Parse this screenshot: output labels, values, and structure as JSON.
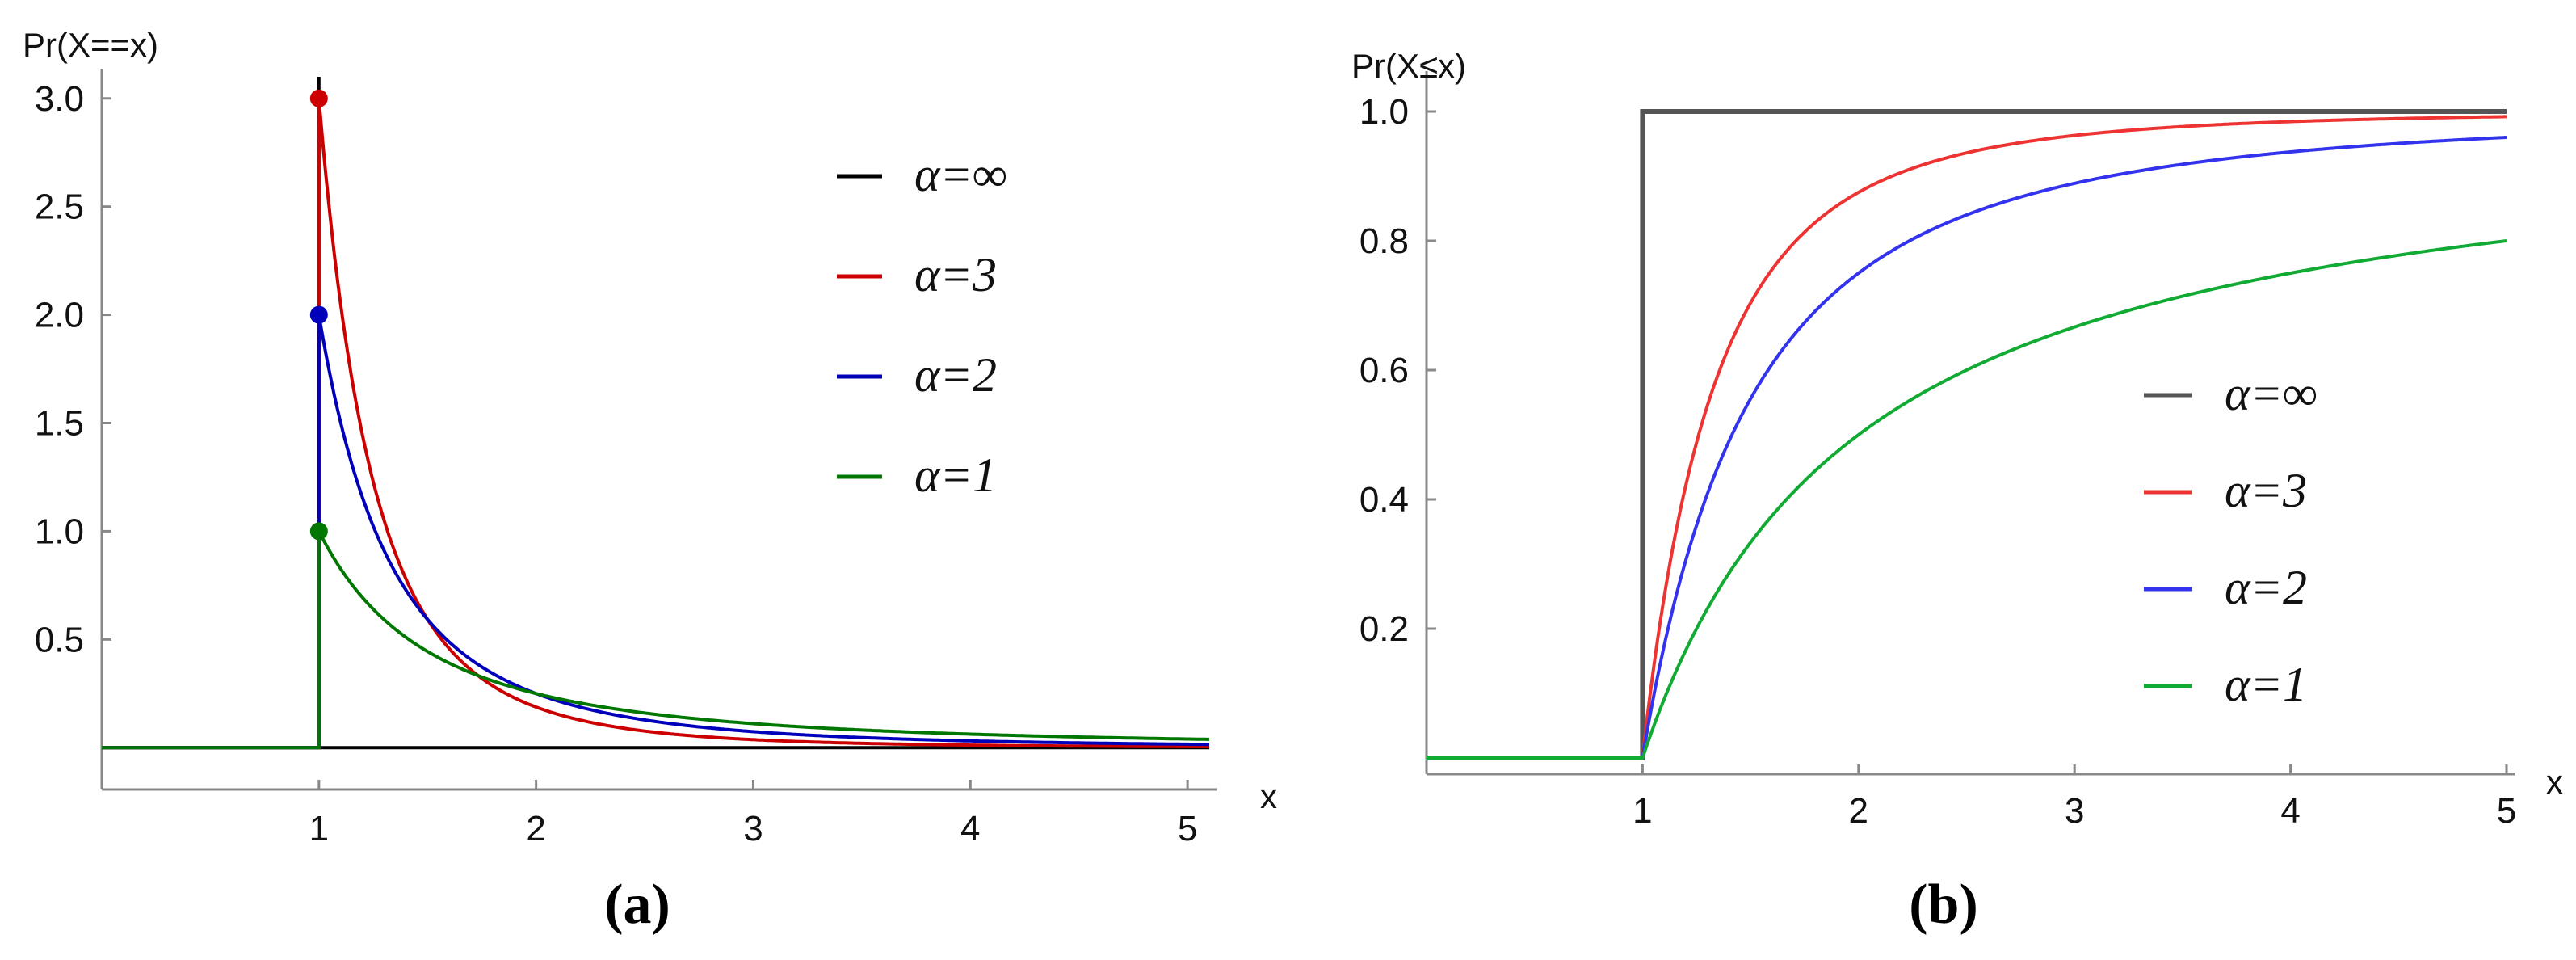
{
  "chart_data": [
    {
      "type": "line",
      "panel_label": "(a)",
      "ylabel": "Pr(X==x)",
      "xlabel": "x",
      "xlim": [
        0,
        5.1
      ],
      "ylim": [
        -0.1,
        3.1
      ],
      "xticks": [
        "1",
        "2",
        "3",
        "4",
        "5"
      ],
      "yticks": [
        "0.5",
        "1.0",
        "1.5",
        "2.0",
        "2.5",
        "3.0"
      ],
      "legend_position": "top-right",
      "grid": false,
      "series": [
        {
          "name": "α=∞",
          "color": "#000000",
          "alpha": "inf",
          "x": [
            0,
            1,
            1,
            1,
            5.1
          ],
          "y": [
            0,
            0,
            3.1,
            0,
            0
          ]
        },
        {
          "name": "α=3",
          "color": "#cc0000",
          "alpha": 3,
          "x": [
            0,
            1,
            1.25,
            1.5,
            2,
            2.5,
            3,
            4,
            5.1
          ],
          "y": [
            0,
            3.0,
            1.23,
            0.59,
            0.19,
            0.077,
            0.037,
            0.012,
            0.0044
          ]
        },
        {
          "name": "α=2",
          "color": "#0000bb",
          "alpha": 2,
          "x": [
            0,
            1,
            1.25,
            1.5,
            2,
            2.5,
            3,
            4,
            5.1
          ],
          "y": [
            0,
            2.0,
            1.02,
            0.59,
            0.25,
            0.128,
            0.074,
            0.031,
            0.015
          ]
        },
        {
          "name": "α=1",
          "color": "#007700",
          "alpha": 1,
          "x": [
            0,
            1,
            1.25,
            1.5,
            2,
            2.5,
            3,
            4,
            5.1
          ],
          "y": [
            0,
            1.0,
            0.64,
            0.44,
            0.25,
            0.16,
            0.11,
            0.0625,
            0.038
          ]
        }
      ],
      "markers": [
        {
          "x": 1,
          "y": 3.0,
          "color": "#cc0000"
        },
        {
          "x": 1,
          "y": 2.0,
          "color": "#0000bb"
        },
        {
          "x": 1,
          "y": 1.0,
          "color": "#007700"
        }
      ]
    },
    {
      "type": "line",
      "panel_label": "(b)",
      "ylabel": "Pr(X≤x)",
      "xlabel": "x",
      "xlim": [
        0,
        5
      ],
      "ylim": [
        0,
        1.05
      ],
      "xticks": [
        "1",
        "2",
        "3",
        "4",
        "5"
      ],
      "yticks": [
        "0.2",
        "0.4",
        "0.6",
        "0.8",
        "1.0"
      ],
      "legend_position": "center-right",
      "grid": false,
      "series": [
        {
          "name": "α=∞",
          "color": "#555555",
          "alpha": "inf",
          "x": [
            0,
            1,
            1,
            5
          ],
          "y": [
            0,
            0,
            1.0,
            1.0
          ]
        },
        {
          "name": "α=3",
          "color": "#ee3333",
          "alpha": 3,
          "x": [
            0,
            1,
            1.25,
            1.5,
            2,
            2.5,
            3,
            4,
            5
          ],
          "y": [
            0,
            0,
            0.488,
            0.704,
            0.875,
            0.936,
            0.963,
            0.984,
            0.992
          ]
        },
        {
          "name": "α=2",
          "color": "#3333ee",
          "alpha": 2,
          "x": [
            0,
            1,
            1.25,
            1.5,
            2,
            2.5,
            3,
            4,
            5
          ],
          "y": [
            0,
            0,
            0.36,
            0.556,
            0.75,
            0.84,
            0.889,
            0.9375,
            0.96
          ]
        },
        {
          "name": "α=1",
          "color": "#11aa33",
          "alpha": 1,
          "x": [
            0,
            1,
            1.25,
            1.5,
            2,
            2.5,
            3,
            4,
            5
          ],
          "y": [
            0,
            0,
            0.2,
            0.333,
            0.5,
            0.6,
            0.667,
            0.75,
            0.8
          ]
        }
      ]
    }
  ]
}
